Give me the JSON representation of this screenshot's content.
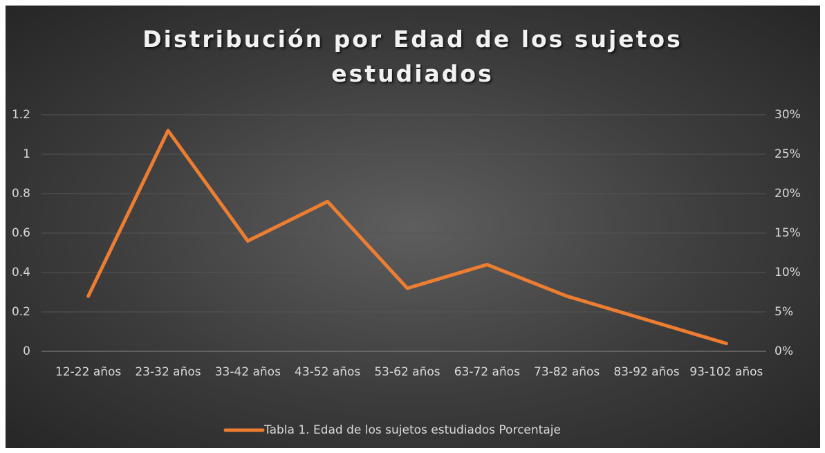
{
  "chart_data": {
    "type": "line",
    "title": "Distribución por Edad de los sujetos estudiados",
    "categories": [
      "12-22 años",
      "23-32 años",
      "33-42 años",
      "43-52 años",
      "53-62 años",
      "63-72 años",
      "73-82 años",
      "83-92 años",
      "93-102 años"
    ],
    "series": [
      {
        "name": "Tabla 1. Edad de los sujetos estudiados Porcentaje",
        "color": "#ed7d31",
        "axis": "y2",
        "values": [
          7,
          28,
          14,
          19,
          8,
          11,
          7,
          4,
          1
        ]
      }
    ],
    "ylim": [
      0,
      1.2
    ],
    "yticks": [
      0,
      0.2,
      0.4,
      0.6,
      0.8,
      1,
      1.2
    ],
    "y2lim": [
      0,
      30
    ],
    "y2ticks": [
      {
        "value": 0,
        "label": "0%"
      },
      {
        "value": 5,
        "label": "5%"
      },
      {
        "value": 10,
        "label": "10%"
      },
      {
        "value": 15,
        "label": "15%"
      },
      {
        "value": 20,
        "label": "20%"
      },
      {
        "value": 25,
        "label": "25%"
      },
      {
        "value": 30,
        "label": "30%"
      }
    ],
    "grid": true,
    "legend": "bottom"
  }
}
